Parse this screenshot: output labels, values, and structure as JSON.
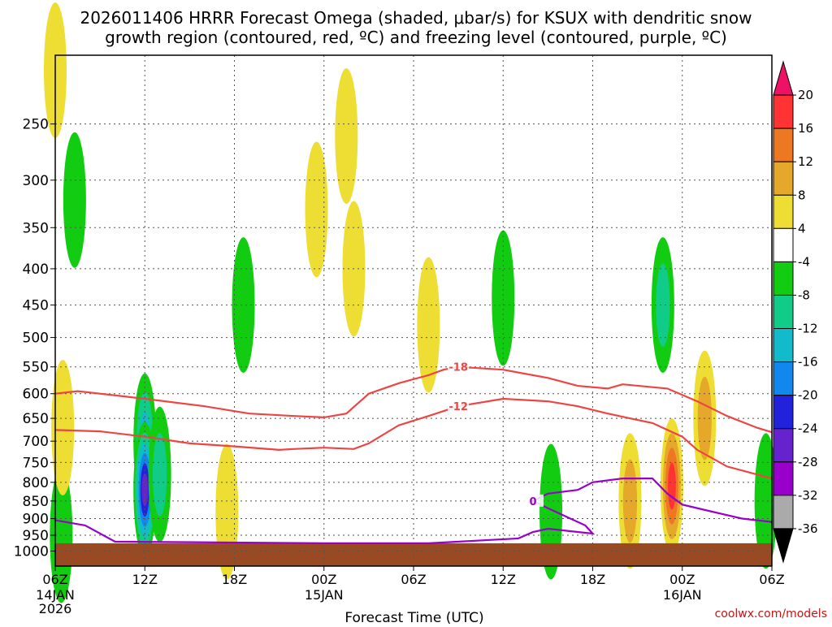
{
  "title_line1": "2026011406 HRRR Forecast Omega (shaded, μbar/s) for KSUX with dendritic snow",
  "title_line2": "growth region (contoured, red, ºC) and freezing level (contoured, purple, ºC)",
  "xlabel": "Forecast Time (UTC)",
  "credit": "coolwx.com/models",
  "colors": {
    "ground": "#9a4a22",
    "dgz_contour": "#ee4444",
    "freezing_contour": "#9900cc",
    "grid": "#555555"
  },
  "chart_data": {
    "type": "heatmap",
    "x_ticks": [
      {
        "hour": 0,
        "label": "06Z",
        "sub1": "14JAN",
        "sub2": "2026"
      },
      {
        "hour": 6,
        "label": "12Z",
        "sub1": "",
        "sub2": ""
      },
      {
        "hour": 12,
        "label": "18Z",
        "sub1": "",
        "sub2": ""
      },
      {
        "hour": 18,
        "label": "00Z",
        "sub1": "15JAN",
        "sub2": ""
      },
      {
        "hour": 24,
        "label": "06Z",
        "sub1": "",
        "sub2": ""
      },
      {
        "hour": 30,
        "label": "12Z",
        "sub1": "",
        "sub2": ""
      },
      {
        "hour": 36,
        "label": "18Z",
        "sub1": "",
        "sub2": ""
      },
      {
        "hour": 42,
        "label": "00Z",
        "sub1": "16JAN",
        "sub2": ""
      },
      {
        "hour": 48,
        "label": "06Z",
        "sub1": "",
        "sub2": ""
      }
    ],
    "xlim_hours": [
      0,
      48
    ],
    "y_axis_unit": "hPa",
    "y_log": true,
    "ylim": [
      1050,
      200
    ],
    "y_ticks": [
      250,
      300,
      350,
      400,
      450,
      500,
      550,
      600,
      650,
      700,
      750,
      800,
      850,
      900,
      950,
      1000
    ],
    "colorbar": {
      "levels": [
        -36,
        -32,
        -28,
        -24,
        -20,
        -16,
        -12,
        -8,
        -4,
        4,
        8,
        12,
        16,
        20
      ],
      "labels": [
        "20",
        "16",
        "12",
        "8",
        "4",
        "-4",
        "-8",
        "-12",
        "-16",
        "-20",
        "-24",
        "-28",
        "-32",
        "-36"
      ],
      "colors_top_to_bottom": [
        "#ee1166",
        "#ff3333",
        "#ee7722",
        "#e6a82a",
        "#eedd33",
        "#ffffff",
        "#11cc11",
        "#11cc88",
        "#11bbcc",
        "#1188ee",
        "#2222dd",
        "#6622cc",
        "#9900cc",
        "#aaaaaa",
        "#000000"
      ]
    },
    "omega_features": [
      {
        "x": 0.4,
        "p": 950,
        "value": -6
      },
      {
        "x": 1.3,
        "p": 320,
        "value": -6
      },
      {
        "x": 6.0,
        "p": 700,
        "value": -14
      },
      {
        "x": 6.0,
        "p": 820,
        "value": -24
      },
      {
        "x": 12.6,
        "p": 450,
        "value": -6
      },
      {
        "x": 7.0,
        "p": 780,
        "value": -10
      },
      {
        "x": 0.5,
        "p": 670,
        "value": 5
      },
      {
        "x": 0.0,
        "p": 210,
        "value": 5
      },
      {
        "x": 11.5,
        "p": 880,
        "value": 5
      },
      {
        "x": 17.5,
        "p": 330,
        "value": 5
      },
      {
        "x": 19.5,
        "p": 260,
        "value": 5
      },
      {
        "x": 20.0,
        "p": 400,
        "value": 5
      },
      {
        "x": 25.0,
        "p": 480,
        "value": 5
      },
      {
        "x": 30.0,
        "p": 440,
        "value": -6
      },
      {
        "x": 33.2,
        "p": 880,
        "value": -6
      },
      {
        "x": 38.5,
        "p": 850,
        "value": 10
      },
      {
        "x": 41.3,
        "p": 810,
        "value": 18
      },
      {
        "x": 40.7,
        "p": 450,
        "value": -10
      },
      {
        "x": 43.5,
        "p": 650,
        "value": 10
      },
      {
        "x": 47.6,
        "p": 850,
        "value": -6
      }
    ],
    "dgz_contours": [
      {
        "label": "-18",
        "points": [
          [
            0,
            600
          ],
          [
            1.5,
            595
          ],
          [
            3,
            600
          ],
          [
            6,
            610
          ],
          [
            10,
            625
          ],
          [
            13,
            640
          ],
          [
            16,
            645
          ],
          [
            18,
            648
          ],
          [
            19.5,
            640
          ],
          [
            21,
            600
          ],
          [
            23,
            580
          ],
          [
            25,
            565
          ],
          [
            26,
            555
          ],
          [
            27,
            550
          ],
          [
            30,
            555
          ],
          [
            33,
            570
          ],
          [
            35,
            585
          ],
          [
            37,
            590
          ],
          [
            38,
            582
          ],
          [
            41,
            590
          ],
          [
            43,
            615
          ],
          [
            45,
            645
          ],
          [
            47,
            670
          ],
          [
            48,
            680
          ]
        ]
      },
      {
        "label": "-12",
        "points": [
          [
            0,
            675
          ],
          [
            3,
            678
          ],
          [
            6,
            690
          ],
          [
            9,
            705
          ],
          [
            12,
            712
          ],
          [
            15,
            720
          ],
          [
            16,
            718
          ],
          [
            18,
            715
          ],
          [
            20,
            718
          ],
          [
            21,
            705
          ],
          [
            23,
            665
          ],
          [
            25,
            645
          ],
          [
            27,
            625
          ],
          [
            30,
            610
          ],
          [
            33,
            615
          ],
          [
            35,
            625
          ],
          [
            37,
            640
          ],
          [
            40,
            660
          ],
          [
            42,
            690
          ],
          [
            43,
            720
          ],
          [
            45,
            760
          ],
          [
            47,
            780
          ],
          [
            48,
            790
          ]
        ]
      }
    ],
    "freezing_contour": {
      "label": "0",
      "points": [
        [
          0,
          905
        ],
        [
          2,
          920
        ],
        [
          4,
          970
        ],
        [
          18,
          975
        ],
        [
          25,
          975
        ],
        [
          31,
          960
        ],
        [
          32,
          940
        ],
        [
          33,
          930
        ],
        [
          35,
          940
        ],
        [
          36,
          945
        ],
        [
          35.5,
          920
        ],
        [
          34,
          890
        ],
        [
          33,
          870
        ],
        [
          32,
          850
        ],
        [
          33,
          830
        ],
        [
          35,
          820
        ],
        [
          36,
          800
        ],
        [
          38,
          790
        ],
        [
          40,
          790
        ],
        [
          41,
          830
        ],
        [
          42,
          860
        ],
        [
          44,
          880
        ],
        [
          46,
          900
        ],
        [
          48,
          910
        ]
      ]
    }
  }
}
